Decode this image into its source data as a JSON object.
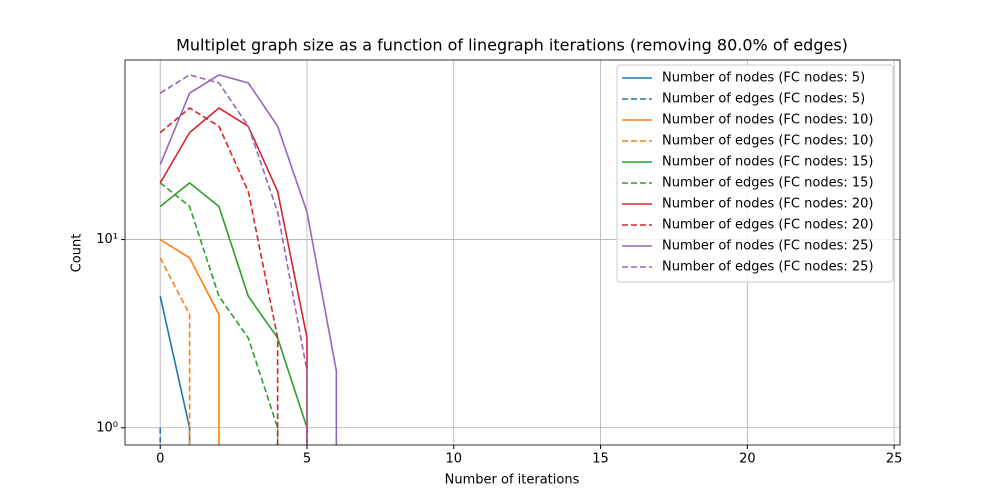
{
  "chart_data": {
    "type": "line",
    "title": "Multiplet graph size as a function of linegraph iterations (removing 80.0% of edges)",
    "x_label": "Number of iterations",
    "y_label": "Count",
    "x": [
      0,
      1,
      2,
      3,
      4,
      5,
      6,
      7
    ],
    "series": [
      {
        "name": "Number of nodes (FC nodes: 5)",
        "color": "#1f77b4",
        "dash": false,
        "values": [
          5,
          1,
          0,
          null,
          null,
          null,
          null,
          null
        ]
      },
      {
        "name": "Number of edges (FC nodes: 5)",
        "color": "#1f77b4",
        "dash": true,
        "values": [
          1,
          0,
          null,
          null,
          null,
          null,
          null,
          null
        ]
      },
      {
        "name": "Number of nodes (FC nodes: 10)",
        "color": "#ff7f0e",
        "dash": false,
        "values": [
          10,
          8,
          4,
          0,
          null,
          null,
          null,
          null
        ]
      },
      {
        "name": "Number of edges (FC nodes: 10)",
        "color": "#ff7f0e",
        "dash": true,
        "values": [
          8,
          4,
          0,
          null,
          null,
          null,
          null,
          null
        ]
      },
      {
        "name": "Number of nodes (FC nodes: 15)",
        "color": "#2ca02c",
        "dash": false,
        "values": [
          15,
          20,
          15,
          5,
          3,
          1,
          0,
          null
        ]
      },
      {
        "name": "Number of edges (FC nodes: 15)",
        "color": "#2ca02c",
        "dash": true,
        "values": [
          20,
          15,
          5,
          3,
          1,
          0,
          null,
          null
        ]
      },
      {
        "name": "Number of nodes (FC nodes: 20)",
        "color": "#d62728",
        "dash": false,
        "values": [
          20,
          37,
          50,
          40,
          18,
          3,
          0,
          null
        ]
      },
      {
        "name": "Number of edges (FC nodes: 20)",
        "color": "#d62728",
        "dash": true,
        "values": [
          37,
          50,
          40,
          18,
          3,
          0,
          null,
          null
        ]
      },
      {
        "name": "Number of nodes (FC nodes: 25)",
        "color": "#9467bd",
        "dash": false,
        "values": [
          25,
          60,
          75,
          68,
          40,
          14,
          2,
          0
        ]
      },
      {
        "name": "Number of edges (FC nodes: 25)",
        "color": "#9467bd",
        "dash": true,
        "values": [
          60,
          75,
          68,
          40,
          14,
          2,
          0,
          null
        ]
      }
    ],
    "xlim": [
      -1.2,
      25.2
    ],
    "xticks": [
      0,
      5,
      10,
      15,
      20,
      25
    ],
    "ylim": [
      0.81,
      90
    ],
    "log_y": true,
    "yticks": [
      {
        "value": 1,
        "label": "10⁰"
      },
      {
        "value": 10,
        "label": "10¹"
      }
    ],
    "grid": true,
    "legend": "upper right"
  }
}
